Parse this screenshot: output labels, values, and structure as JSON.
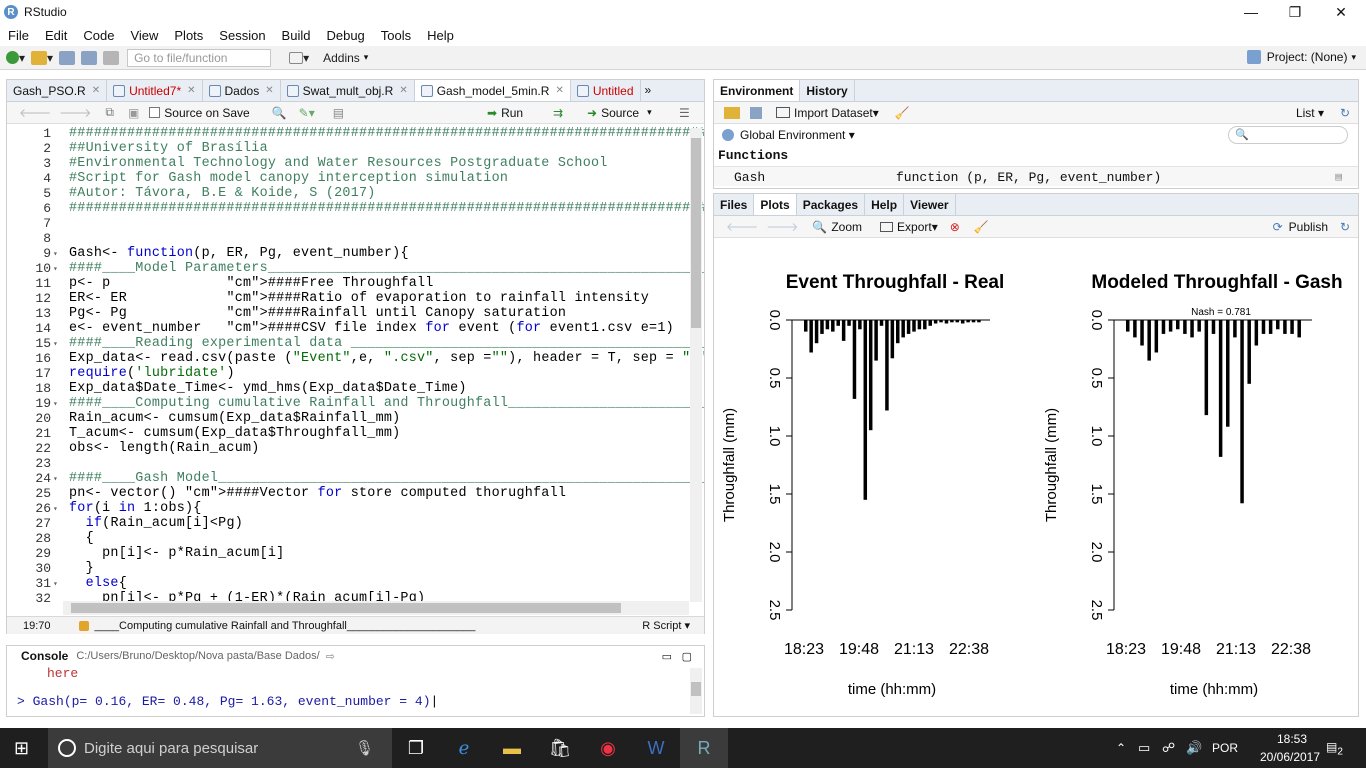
{
  "window": {
    "title": "RStudio",
    "app_icon": "R",
    "minimize": "—",
    "restore": "❐",
    "close": "✕"
  },
  "menu": [
    "File",
    "Edit",
    "Code",
    "View",
    "Plots",
    "Session",
    "Build",
    "Debug",
    "Tools",
    "Help"
  ],
  "toolbar": {
    "goto_placeholder": "Go to file/function",
    "addins": "Addins",
    "project": "Project: (None)"
  },
  "editor": {
    "tabs": [
      {
        "label": "Gash_PSO.R",
        "modified": false
      },
      {
        "label": "Untitled7*",
        "modified": true
      },
      {
        "label": "Dados",
        "modified": false
      },
      {
        "label": "Swat_mult_obj.R",
        "modified": false
      },
      {
        "label": "Gash_model_5min.R",
        "modified": false,
        "active": true
      },
      {
        "label": "Untitled",
        "modified": true
      }
    ],
    "source_on_save": "Source on Save",
    "run": "Run",
    "source": "Source",
    "lines": [
      {
        "n": "1",
        "t": "#####################################################################################################################",
        "c": "cm"
      },
      {
        "n": "2",
        "t": "##University of Brasília",
        "c": "cm"
      },
      {
        "n": "3",
        "t": "#Environmental Technology and Water Resources Postgraduate School",
        "c": "cm"
      },
      {
        "n": "4",
        "t": "#Script for Gash model canopy interception simulation",
        "c": "cm"
      },
      {
        "n": "5",
        "t": "#Autor: Távora, B.E & Koide, S (2017)",
        "c": "cm"
      },
      {
        "n": "6",
        "t": "#####################################################################################################################",
        "c": "cm"
      },
      {
        "n": "7",
        "t": "",
        "c": "pl"
      },
      {
        "n": "8",
        "t": "",
        "c": "pl"
      },
      {
        "n": "9",
        "t": "Gash<- function(p, ER, Pg, event_number){",
        "c": "pl",
        "fold": "▾"
      },
      {
        "n": "10",
        "t": "####____Model Parameters____________________________________________________________________##",
        "c": "cm",
        "fold": "▾"
      },
      {
        "n": "11",
        "t": "p<- p              ####Free Throughfall",
        "c": "pl"
      },
      {
        "n": "12",
        "t": "ER<- ER            ####Ratio of evaporation to rainfall intensity",
        "c": "pl"
      },
      {
        "n": "13",
        "t": "Pg<- Pg            ####Rainfall until Canopy saturation",
        "c": "pl"
      },
      {
        "n": "14",
        "t": "e<- event_number   ####CSV file index for event (for event1.csv e=1)",
        "c": "pl"
      },
      {
        "n": "15",
        "t": "####____Reading experimental data ____________________________________________________________##",
        "c": "cm",
        "fold": "▾"
      },
      {
        "n": "16",
        "t": "Exp_data<- read.csv(paste (\"Event\",e, \".csv\", sep =\"\"), header = T, sep = \",\")",
        "c": "pl"
      },
      {
        "n": "17",
        "t": "require('lubridate')",
        "c": "pl"
      },
      {
        "n": "18",
        "t": "Exp_data$Date_Time<- ymd_hms(Exp_data$Date_Time)",
        "c": "pl"
      },
      {
        "n": "19",
        "t": "####____Computing cumulative Rainfall and Throughfall______________________|____________##",
        "c": "cm",
        "fold": "▾"
      },
      {
        "n": "20",
        "t": "Rain_acum<- cumsum(Exp_data$Rainfall_mm)",
        "c": "pl"
      },
      {
        "n": "21",
        "t": "T_acum<- cumsum(Exp_data$Throughfall_mm)",
        "c": "pl"
      },
      {
        "n": "22",
        "t": "obs<- length(Rain_acum)",
        "c": "pl"
      },
      {
        "n": "23",
        "t": "",
        "c": "pl"
      },
      {
        "n": "24",
        "t": "####____Gash Model____________________________________________________________________________##",
        "c": "cm",
        "fold": "▾"
      },
      {
        "n": "25",
        "t": "pn<- vector() ####Vector for store computed thorughfall",
        "c": "pl"
      },
      {
        "n": "26",
        "t": "for(i in 1:obs){",
        "c": "pl",
        "fold": "▾"
      },
      {
        "n": "27",
        "t": "  if(Rain_acum[i]<Pg)",
        "c": "pl"
      },
      {
        "n": "28",
        "t": "  {",
        "c": "pl"
      },
      {
        "n": "29",
        "t": "    pn[i]<- p*Rain_acum[i]",
        "c": "pl"
      },
      {
        "n": "30",
        "t": "  }",
        "c": "pl"
      },
      {
        "n": "31",
        "t": "  else{",
        "c": "pl",
        "fold": "▾"
      },
      {
        "n": "32",
        "t": "    pn[i]<- p*Pg + (1-ER)*(Rain_acum[i]-Pg)",
        "c": "pl"
      },
      {
        "n": "33",
        "t": "",
        "c": "pl"
      }
    ],
    "status_pos": "19:70",
    "status_section": "____Computing cumulative Rainfall and Throughfall_____________________",
    "status_lang": "R Script"
  },
  "console": {
    "label": "Console",
    "path": "C:/Users/Bruno/Desktop/Nova pasta/Base Dados/",
    "prev_line": "here",
    "prompt": ">",
    "command": "Gash(p= 0.16, ER= 0.48, Pg= 1.63, event_number = 4)"
  },
  "env": {
    "tabs": [
      "Environment",
      "History"
    ],
    "import": "Import Dataset",
    "list": "List",
    "global": "Global Environment",
    "section": "Functions",
    "rows": [
      {
        "name": "Gash",
        "value": "function (p, ER, Pg, event_number)"
      }
    ]
  },
  "files": {
    "tabs": [
      "Files",
      "Plots",
      "Packages",
      "Help",
      "Viewer"
    ],
    "zoom": "Zoom",
    "export": "Export",
    "publish": "Publish"
  },
  "chart_data": [
    {
      "type": "bar",
      "title": "Event Throughfall - Real",
      "xlabel": "time (hh:mm)",
      "ylabel": "Throughfall (mm)",
      "x_ticks": [
        "18:23",
        "19:48",
        "21:13",
        "22:38"
      ],
      "y_ticks": [
        "0.0",
        "0.5",
        "1.0",
        "1.5",
        "2.0",
        "2.5"
      ],
      "ylim": [
        2.5,
        0
      ],
      "values": [
        0.1,
        0.28,
        0.2,
        0.12,
        0.08,
        0.1,
        0.05,
        0.18,
        0.05,
        0.68,
        0.08,
        1.55,
        0.95,
        0.35,
        0.05,
        0.78,
        0.33,
        0.2,
        0.15,
        0.12,
        0.1,
        0.08,
        0.08,
        0.05,
        0.03,
        0.02,
        0.03,
        0.02,
        0.02,
        0.03,
        0.02,
        0.02,
        0.02
      ]
    },
    {
      "type": "bar",
      "title": "Modeled Throughfall - Gash",
      "subtitle": "Nash = 0.781",
      "xlabel": "time (hh:mm)",
      "ylabel": "Throughfall (mm)",
      "x_ticks": [
        "18:23",
        "19:48",
        "21:13",
        "22:38"
      ],
      "y_ticks": [
        "0.0",
        "0.5",
        "1.0",
        "1.5",
        "2.0",
        "2.5"
      ],
      "ylim": [
        2.5,
        0
      ],
      "values": [
        0.1,
        0.15,
        0.22,
        0.35,
        0.28,
        0.12,
        0.1,
        0.08,
        0.12,
        0.15,
        0.1,
        0.82,
        0.12,
        1.18,
        0.92,
        0.15,
        1.58,
        0.55,
        0.22,
        0.12,
        0.12,
        0.08,
        0.12,
        0.12,
        0.15
      ]
    }
  ],
  "taskbar": {
    "search_placeholder": "Digite aqui para pesquisar",
    "lang": "POR",
    "time": "18:53",
    "date": "20/06/2017",
    "notif": "2"
  }
}
